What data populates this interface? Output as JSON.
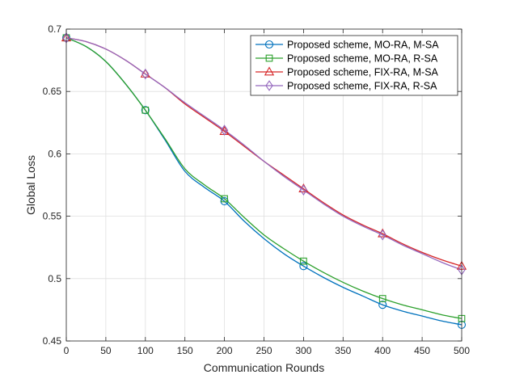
{
  "chart_data": {
    "type": "line",
    "xlabel": "Communication Rounds",
    "ylabel": "Global Loss",
    "xlim": [
      0,
      500
    ],
    "ylim": [
      0.45,
      0.7
    ],
    "xticks": [
      0,
      50,
      100,
      150,
      200,
      250,
      300,
      350,
      400,
      450,
      500
    ],
    "yticks": [
      0.45,
      0.5,
      0.55,
      0.6,
      0.65,
      0.7
    ],
    "xtick_labels": [
      "0",
      "50",
      "100",
      "150",
      "200",
      "250",
      "300",
      "350",
      "400",
      "450",
      "500"
    ],
    "ytick_labels": [
      "0.45",
      "0.5",
      "0.55",
      "0.6",
      "0.65",
      "0.7"
    ],
    "grid": true,
    "legend_position": "top-right",
    "x": [
      0,
      25,
      50,
      75,
      100,
      125,
      150,
      175,
      200,
      225,
      250,
      275,
      300,
      325,
      350,
      375,
      400,
      425,
      450,
      475,
      500
    ],
    "marker_x": [
      0,
      100,
      200,
      300,
      400,
      500
    ],
    "series": [
      {
        "name": "Proposed scheme, MO-RA, M-SA",
        "color": "#0072BD",
        "marker": "circle",
        "values": [
          0.693,
          0.686,
          0.674,
          0.656,
          0.635,
          0.611,
          0.586,
          0.573,
          0.562,
          0.546,
          0.532,
          0.52,
          0.51,
          0.501,
          0.493,
          0.486,
          0.479,
          0.474,
          0.47,
          0.466,
          0.463
        ]
      },
      {
        "name": "Proposed scheme, MO-RA, R-SA",
        "color": "#2CA02C",
        "marker": "square",
        "values": [
          0.693,
          0.686,
          0.674,
          0.656,
          0.635,
          0.612,
          0.588,
          0.575,
          0.564,
          0.549,
          0.535,
          0.524,
          0.514,
          0.505,
          0.497,
          0.49,
          0.484,
          0.479,
          0.475,
          0.471,
          0.468
        ]
      },
      {
        "name": "Proposed scheme, FIX-RA, M-SA",
        "color": "#D62728",
        "marker": "triangle",
        "values": [
          0.693,
          0.69,
          0.684,
          0.675,
          0.664,
          0.653,
          0.64,
          0.629,
          0.618,
          0.606,
          0.594,
          0.583,
          0.572,
          0.561,
          0.551,
          0.543,
          0.536,
          0.528,
          0.521,
          0.515,
          0.51
        ]
      },
      {
        "name": "Proposed scheme, FIX-RA, R-SA",
        "color": "#9467BD",
        "marker": "diamond",
        "values": [
          0.693,
          0.69,
          0.684,
          0.675,
          0.664,
          0.653,
          0.641,
          0.63,
          0.619,
          0.607,
          0.594,
          0.582,
          0.571,
          0.56,
          0.55,
          0.542,
          0.535,
          0.527,
          0.52,
          0.513,
          0.507
        ]
      }
    ]
  }
}
